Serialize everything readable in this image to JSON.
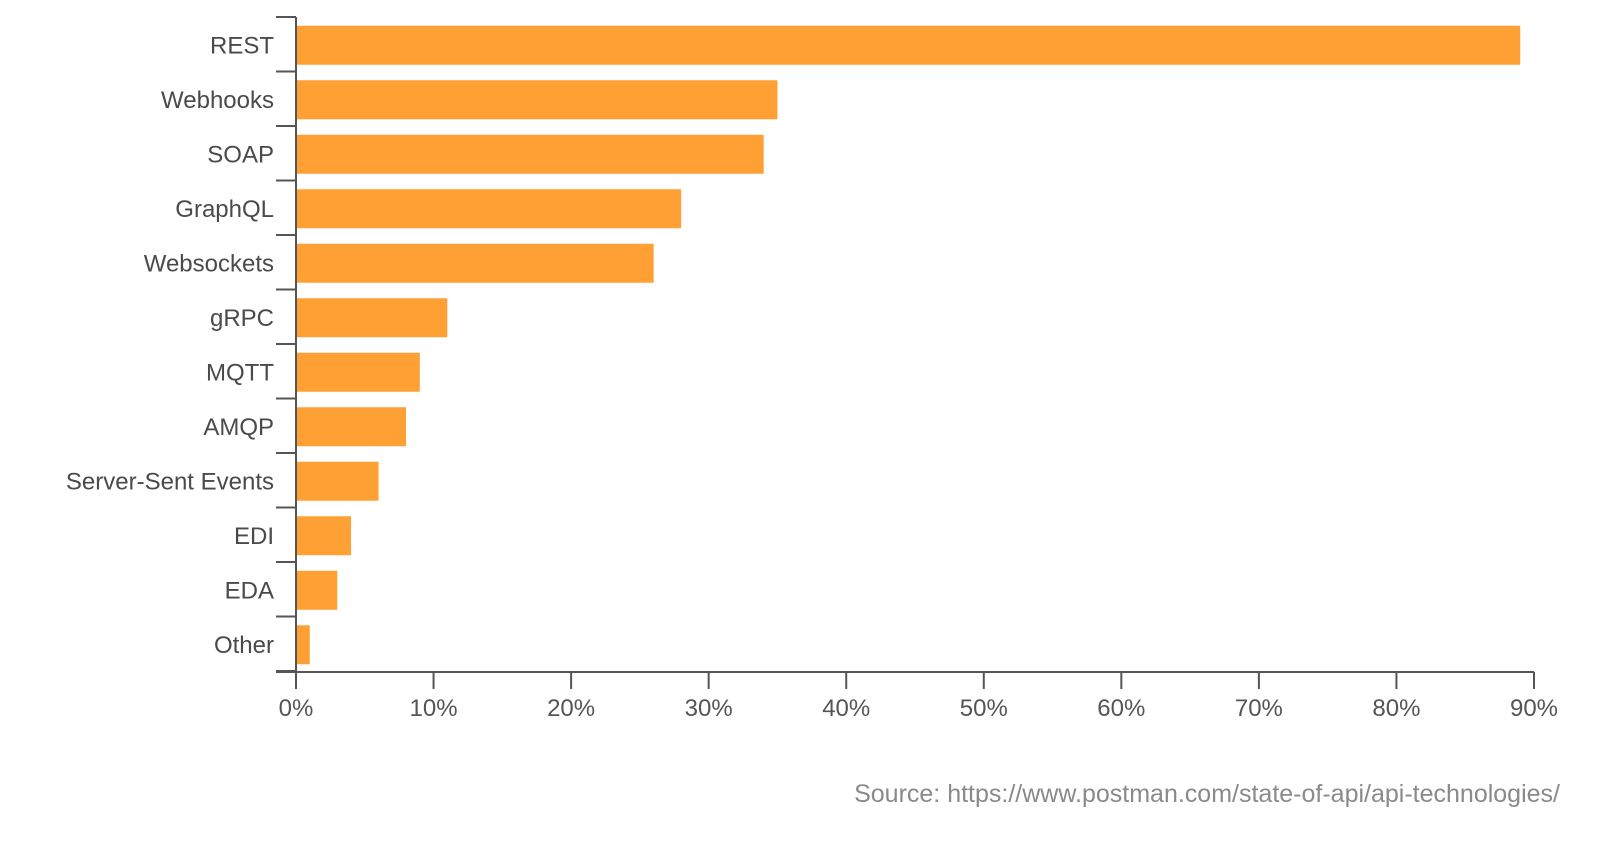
{
  "chart_data": {
    "type": "bar",
    "orientation": "horizontal",
    "categories": [
      "REST",
      "Webhooks",
      "SOAP",
      "GraphQL",
      "Websockets",
      "gRPC",
      "MQTT",
      "AMQP",
      "Server-Sent Events",
      "EDI",
      "EDA",
      "Other"
    ],
    "values": [
      89,
      35,
      34,
      28,
      26,
      11,
      9,
      8,
      6,
      4,
      3,
      1
    ],
    "value_unit": "%",
    "xlim": [
      0,
      90
    ],
    "x_ticks": [
      "0%",
      "10%",
      "20%",
      "30%",
      "40%",
      "50%",
      "60%",
      "70%",
      "80%",
      "90%"
    ],
    "bar_color": "#ffa035",
    "grid": false,
    "legend": "none",
    "title": "",
    "xlabel": "",
    "ylabel": ""
  },
  "source_text": "Source: https://www.postman.com/state-of-api/api-technologies/"
}
